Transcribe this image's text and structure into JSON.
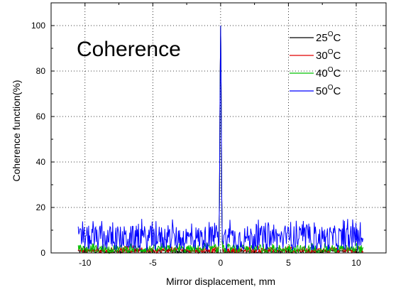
{
  "chart_data": {
    "type": "line",
    "title": "Coherence",
    "xlabel": "Mirror displacement, mm",
    "ylabel": "Coherence function(%)",
    "xlim": [
      -12.5,
      12.2
    ],
    "ylim": [
      0,
      110
    ],
    "x_ticks": [
      "-10",
      "-5",
      "0",
      "5",
      "10"
    ],
    "y_ticks": [
      "0",
      "20",
      "40",
      "60",
      "80",
      "100"
    ],
    "grid": true,
    "legend_position": "top-right",
    "series": [
      {
        "name": "25",
        "unit_sup": "O",
        "unit": "C",
        "color": "#000000",
        "peak": 100,
        "floor": 0,
        "noise_max": 1.5
      },
      {
        "name": "30",
        "unit_sup": "O",
        "unit": "C",
        "color": "#e00000",
        "peak": 100,
        "floor": 0,
        "noise_max": 2.5
      },
      {
        "name": "40",
        "unit_sup": "O",
        "unit": "C",
        "color": "#00c000",
        "peak": 100,
        "floor": 0,
        "noise_max": 3.5
      },
      {
        "name": "50",
        "unit_sup": "O",
        "unit": "C",
        "color": "#0000ff",
        "peak": 100,
        "floor": 1,
        "noise_max": 12
      }
    ],
    "x_range": [
      -10.5,
      10.5
    ],
    "peak_x": 0
  }
}
